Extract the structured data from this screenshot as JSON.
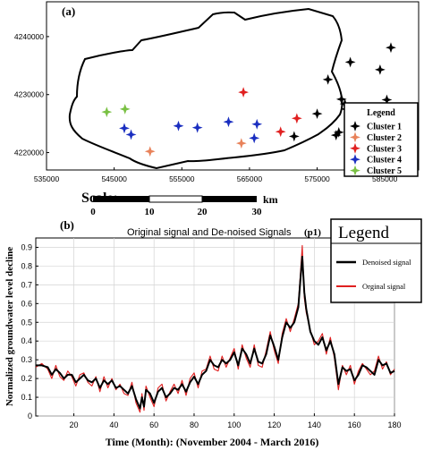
{
  "chart_data": [
    {
      "type": "scatter",
      "panel_label": "(a)",
      "x_ticks": [
        "535000",
        "545000",
        "555000",
        "565000",
        "575000",
        "585000"
      ],
      "y_ticks": [
        "4220000",
        "4230000",
        "4240000"
      ],
      "xlim": [
        535000,
        590000
      ],
      "ylim": [
        4217000,
        4246000
      ],
      "legend": {
        "title": "Legend",
        "position": "right",
        "entries": [
          {
            "label": "Cluster 1",
            "color": "#000000"
          },
          {
            "label": "Cluster 2",
            "color": "#e8825a"
          },
          {
            "label": "Cluster 3",
            "color": "#e02020"
          },
          {
            "label": "Cluster 4",
            "color": "#1a2ec0"
          },
          {
            "label": "Cluster 5",
            "color": "#79c043"
          }
        ]
      },
      "series": [
        {
          "name": "Cluster 1",
          "color": "#000000",
          "points": [
            [
              571600,
              4222800
            ],
            [
              575000,
              4226700
            ],
            [
              576600,
              4232600
            ],
            [
              578200,
              4223500
            ],
            [
              578600,
              4229200
            ],
            [
              577800,
              4223000
            ],
            [
              579300,
              4227500
            ],
            [
              579900,
              4235600
            ],
            [
              581100,
              4225600
            ],
            [
              579100,
              4228400
            ],
            [
              584300,
              4234300
            ],
            [
              585900,
              4238100
            ],
            [
              585300,
              4229100
            ]
          ]
        },
        {
          "name": "Cluster 2",
          "color": "#e8825a",
          "points": [
            [
              550300,
              4220200
            ],
            [
              563800,
              4221600
            ]
          ]
        },
        {
          "name": "Cluster 3",
          "color": "#e02020",
          "points": [
            [
              564100,
              4230400
            ],
            [
              569600,
              4223600
            ],
            [
              572000,
              4225900
            ]
          ]
        },
        {
          "name": "Cluster 4",
          "color": "#1a2ec0",
          "points": [
            [
              546500,
              4224200
            ],
            [
              547500,
              4223100
            ],
            [
              554500,
              4224600
            ],
            [
              557300,
              4224300
            ],
            [
              561900,
              4225300
            ],
            [
              565700,
              4222500
            ],
            [
              566100,
              4224900
            ]
          ]
        },
        {
          "name": "Cluster 5",
          "color": "#79c043",
          "points": [
            [
              543900,
              4227000
            ],
            [
              546600,
              4227500
            ]
          ]
        }
      ],
      "scale_bar": {
        "label": "Scale:",
        "ticks": [
          "0",
          "10",
          "20",
          "30"
        ],
        "unit": "km"
      }
    },
    {
      "type": "line",
      "panel_label": "(b)",
      "title": "Original signal and De-noised Signals",
      "title_suffix": "(p1)",
      "xlabel": "Time (Month): (November 2004 - March 2016)",
      "ylabel": "Normalized groundwater level decline",
      "xlim": [
        1,
        180
      ],
      "ylim": [
        0,
        0.95
      ],
      "x_ticks": [
        "20",
        "40",
        "60",
        "80",
        "100",
        "120",
        "140",
        "160",
        "180"
      ],
      "y_ticks": [
        "0",
        "0.1",
        "0.2",
        "0.3",
        "0.4",
        "0.5",
        "0.6",
        "0.7",
        "0.8",
        "0.9"
      ],
      "grid": true,
      "legend": {
        "title": "Legend",
        "position": "top-right",
        "entries": [
          {
            "label": "Denoised signal",
            "color": "#000000"
          },
          {
            "label": "Orginal signal",
            "color": "#e02020"
          }
        ]
      },
      "series": [
        {
          "name": "Denoised signal",
          "color": "#000000",
          "x": [
            1,
            4,
            7,
            9,
            11,
            13,
            15,
            17,
            19,
            21,
            23,
            25,
            27,
            29,
            31,
            33,
            35,
            37,
            39,
            41,
            43,
            45,
            47,
            49,
            51,
            53,
            54,
            55,
            56,
            58,
            60,
            62,
            64,
            66,
            68,
            70,
            72,
            74,
            76,
            78,
            80,
            82,
            84,
            86,
            88,
            90,
            92,
            94,
            96,
            98,
            100,
            102,
            104,
            106,
            108,
            110,
            112,
            114,
            116,
            118,
            120,
            122,
            124,
            126,
            128,
            130,
            132,
            133,
            134,
            135,
            136,
            138,
            140,
            142,
            144,
            146,
            148,
            150,
            152,
            154,
            156,
            158,
            160,
            162,
            164,
            166,
            168,
            170,
            172,
            174,
            176,
            178,
            180
          ],
          "y": [
            0.27,
            0.27,
            0.26,
            0.22,
            0.25,
            0.23,
            0.2,
            0.22,
            0.22,
            0.18,
            0.2,
            0.22,
            0.19,
            0.18,
            0.2,
            0.15,
            0.19,
            0.17,
            0.19,
            0.15,
            0.16,
            0.14,
            0.12,
            0.16,
            0.09,
            0.04,
            0.1,
            0.05,
            0.14,
            0.12,
            0.07,
            0.13,
            0.15,
            0.1,
            0.12,
            0.15,
            0.14,
            0.17,
            0.13,
            0.18,
            0.21,
            0.17,
            0.22,
            0.24,
            0.3,
            0.27,
            0.26,
            0.3,
            0.28,
            0.3,
            0.34,
            0.27,
            0.36,
            0.33,
            0.28,
            0.36,
            0.29,
            0.28,
            0.33,
            0.43,
            0.37,
            0.3,
            0.42,
            0.5,
            0.47,
            0.5,
            0.58,
            0.72,
            0.85,
            0.66,
            0.57,
            0.45,
            0.4,
            0.38,
            0.42,
            0.35,
            0.4,
            0.33,
            0.17,
            0.26,
            0.24,
            0.25,
            0.19,
            0.22,
            0.27,
            0.26,
            0.24,
            0.22,
            0.3,
            0.27,
            0.28,
            0.23,
            0.24
          ]
        },
        {
          "name": "Orginal signal",
          "color": "#e02020",
          "x": [
            1,
            4,
            7,
            9,
            11,
            13,
            15,
            17,
            19,
            21,
            23,
            25,
            27,
            29,
            31,
            33,
            35,
            37,
            39,
            41,
            43,
            45,
            47,
            49,
            51,
            53,
            54,
            55,
            56,
            58,
            60,
            62,
            64,
            66,
            68,
            70,
            72,
            74,
            76,
            78,
            80,
            82,
            84,
            86,
            88,
            90,
            92,
            94,
            96,
            98,
            100,
            102,
            104,
            106,
            108,
            110,
            112,
            114,
            116,
            118,
            120,
            122,
            124,
            126,
            128,
            130,
            132,
            133,
            134,
            135,
            136,
            138,
            140,
            142,
            144,
            146,
            148,
            150,
            152,
            154,
            156,
            158,
            160,
            162,
            164,
            166,
            168,
            170,
            172,
            174,
            176,
            178,
            180
          ],
          "y": [
            0.26,
            0.28,
            0.25,
            0.2,
            0.27,
            0.21,
            0.19,
            0.24,
            0.21,
            0.16,
            0.22,
            0.23,
            0.18,
            0.16,
            0.21,
            0.13,
            0.21,
            0.15,
            0.2,
            0.14,
            0.17,
            0.12,
            0.11,
            0.18,
            0.07,
            0.02,
            0.12,
            0.03,
            0.16,
            0.1,
            0.05,
            0.15,
            0.17,
            0.08,
            0.13,
            0.17,
            0.12,
            0.19,
            0.11,
            0.2,
            0.23,
            0.15,
            0.24,
            0.25,
            0.32,
            0.25,
            0.24,
            0.32,
            0.26,
            0.31,
            0.36,
            0.25,
            0.38,
            0.31,
            0.26,
            0.38,
            0.27,
            0.26,
            0.35,
            0.45,
            0.35,
            0.28,
            0.44,
            0.52,
            0.45,
            0.52,
            0.6,
            0.75,
            0.91,
            0.63,
            0.55,
            0.46,
            0.38,
            0.4,
            0.44,
            0.33,
            0.42,
            0.31,
            0.14,
            0.27,
            0.22,
            0.27,
            0.17,
            0.24,
            0.28,
            0.25,
            0.22,
            0.24,
            0.32,
            0.25,
            0.29,
            0.22,
            0.25
          ]
        }
      ]
    }
  ]
}
